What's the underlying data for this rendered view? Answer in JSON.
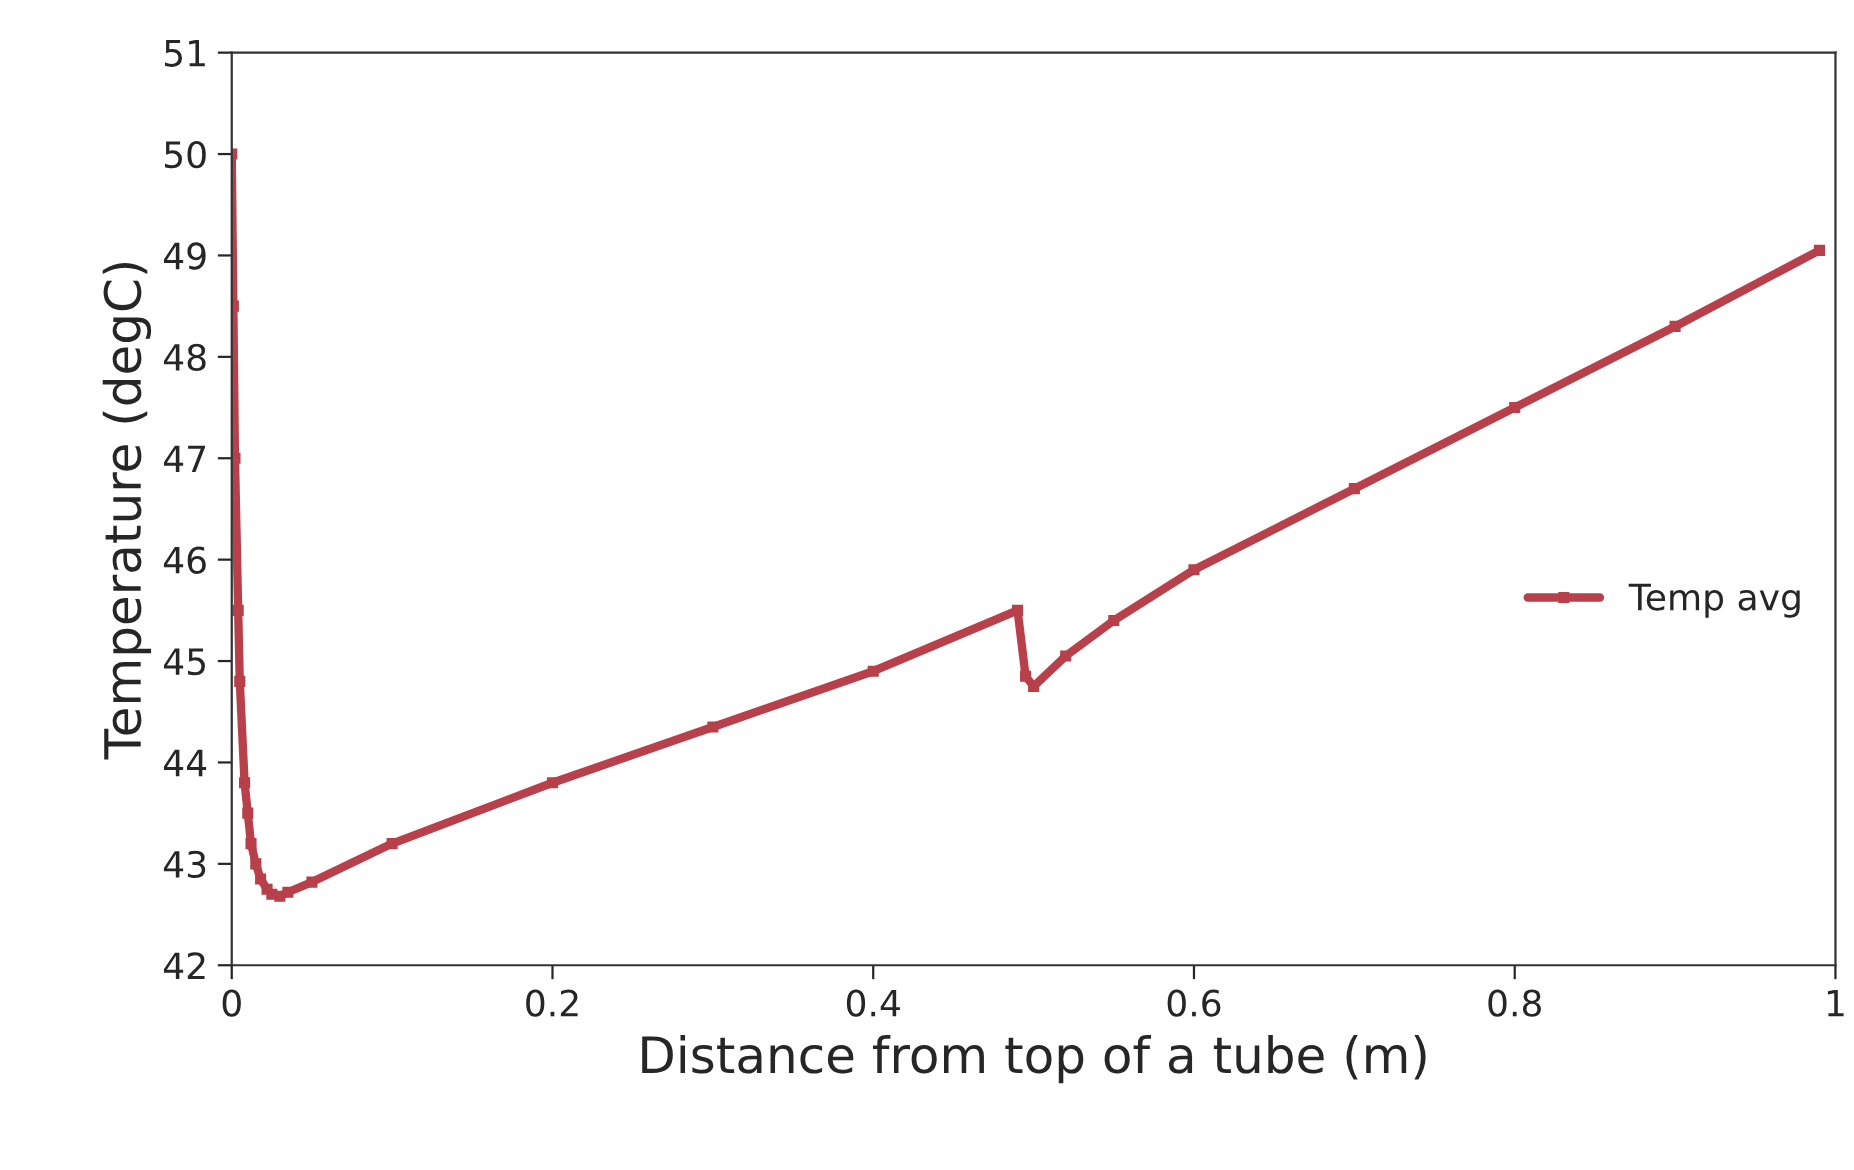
{
  "chart_data": {
    "type": "line",
    "xlabel": "Distance from top of a tube (m)",
    "ylabel": "Temperature (degC)",
    "xlim": [
      0,
      1
    ],
    "xticks": [
      0,
      0.2,
      0.4,
      0.6,
      0.8,
      1
    ],
    "ylim": [
      42,
      51
    ],
    "yticks": [
      42,
      43,
      44,
      45,
      46,
      47,
      48,
      49,
      50,
      51
    ],
    "grid": false,
    "legend": "right",
    "marker": "square",
    "line_style": "solid",
    "series": [
      {
        "name": "Temp avg",
        "color": "#b8404a",
        "x": [
          0,
          0.001,
          0.002,
          0.004,
          0.005,
          0.008,
          0.01,
          0.012,
          0.015,
          0.018,
          0.022,
          0.025,
          0.03,
          0.035,
          0.05,
          0.1,
          0.2,
          0.3,
          0.4,
          0.49,
          0.495,
          0.5,
          0.52,
          0.55,
          0.6,
          0.7,
          0.8,
          0.9,
          0.99
        ],
        "values": [
          50,
          48.5,
          47,
          45.5,
          44.8,
          43.8,
          43.5,
          43.2,
          43.0,
          42.85,
          42.75,
          42.7,
          42.68,
          42.72,
          42.82,
          43.2,
          43.8,
          44.35,
          44.9,
          45.5,
          44.85,
          44.75,
          45.05,
          45.4,
          45.9,
          46.7,
          47.5,
          48.3,
          49.05
        ]
      }
    ]
  }
}
